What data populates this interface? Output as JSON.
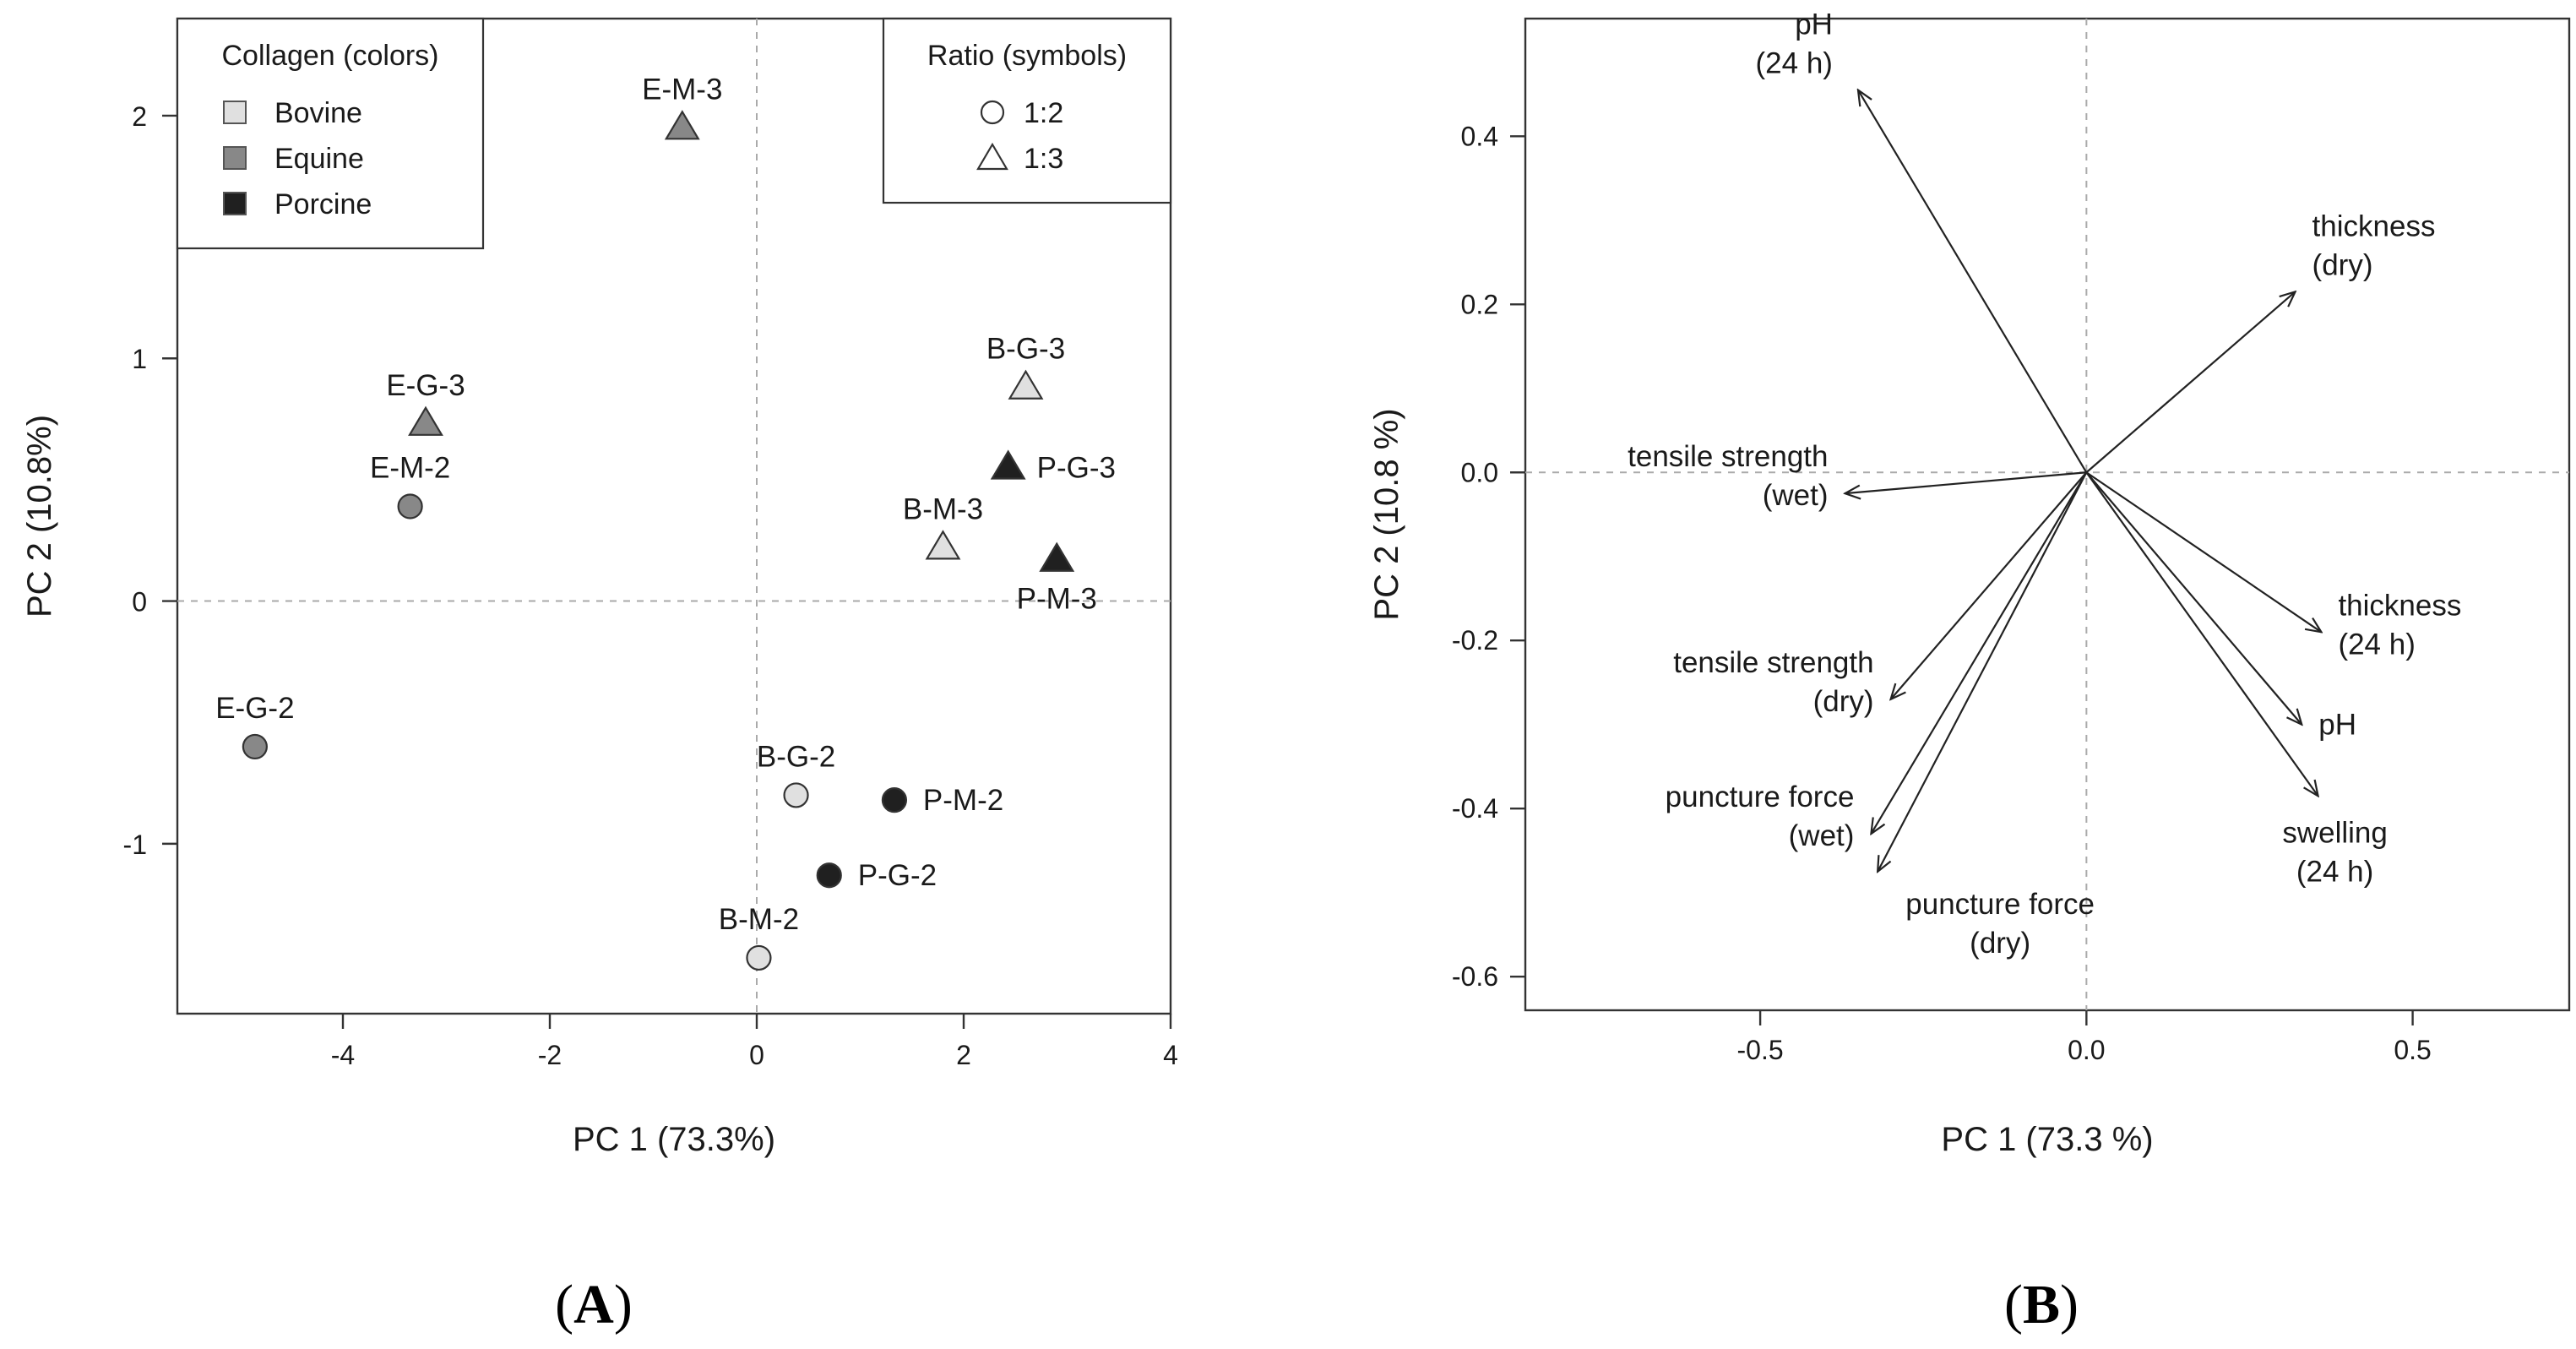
{
  "chart_data": [
    {
      "type": "scatter",
      "panel": "A",
      "xlabel": "PC 1 (73.3%)",
      "ylabel": "PC 2 (10.8%)",
      "xlim": [
        -5.6,
        4.0
      ],
      "ylim": [
        -1.7,
        2.4
      ],
      "xticks": [
        -4,
        -2,
        0,
        2,
        4
      ],
      "yticks": [
        -1,
        0,
        1,
        2
      ],
      "reference_lines": {
        "x": 0,
        "y": 0
      },
      "colors": {
        "Bovine": "#e0e0e0",
        "Equine": "#888888",
        "Porcine": "#202020"
      },
      "legend_collagen": {
        "title": "Collagen (colors)",
        "entries": [
          {
            "label": "Bovine",
            "collagen": "Bovine"
          },
          {
            "label": "Equine",
            "collagen": "Equine"
          },
          {
            "label": "Porcine",
            "collagen": "Porcine"
          }
        ]
      },
      "legend_ratio": {
        "title": "Ratio (symbols)",
        "entries": [
          {
            "label": "1:2",
            "symbol": "circle"
          },
          {
            "label": "1:3",
            "symbol": "triangle"
          }
        ]
      },
      "points": [
        {
          "label": "E-M-3",
          "x": -0.72,
          "y": 1.95,
          "collagen": "Equine",
          "symbol": "triangle",
          "label_pos": "above"
        },
        {
          "label": "E-G-3",
          "x": -3.2,
          "y": 0.73,
          "collagen": "Equine",
          "symbol": "triangle",
          "label_pos": "above"
        },
        {
          "label": "E-M-2",
          "x": -3.35,
          "y": 0.39,
          "collagen": "Equine",
          "symbol": "circle",
          "label_pos": "above"
        },
        {
          "label": "E-G-2",
          "x": -4.85,
          "y": -0.6,
          "collagen": "Equine",
          "symbol": "circle",
          "label_pos": "above"
        },
        {
          "label": "B-G-3",
          "x": 2.6,
          "y": 0.88,
          "collagen": "Bovine",
          "symbol": "triangle",
          "label_pos": "above"
        },
        {
          "label": "P-G-3",
          "x": 2.43,
          "y": 0.55,
          "collagen": "Porcine",
          "symbol": "triangle",
          "label_pos": "right"
        },
        {
          "label": "B-M-3",
          "x": 1.8,
          "y": 0.22,
          "collagen": "Bovine",
          "symbol": "triangle",
          "label_pos": "above"
        },
        {
          "label": "P-M-3",
          "x": 2.9,
          "y": 0.17,
          "collagen": "Porcine",
          "symbol": "triangle",
          "label_pos": "below"
        },
        {
          "label": "B-G-2",
          "x": 0.38,
          "y": -0.8,
          "collagen": "Bovine",
          "symbol": "circle",
          "label_pos": "above"
        },
        {
          "label": "P-M-2",
          "x": 1.33,
          "y": -0.82,
          "collagen": "Porcine",
          "symbol": "circle",
          "label_pos": "right"
        },
        {
          "label": "P-G-2",
          "x": 0.7,
          "y": -1.13,
          "collagen": "Porcine",
          "symbol": "circle",
          "label_pos": "right"
        },
        {
          "label": "B-M-2",
          "x": 0.02,
          "y": -1.47,
          "collagen": "Bovine",
          "symbol": "circle",
          "label_pos": "above"
        }
      ]
    },
    {
      "type": "biplot-loadings",
      "panel": "B",
      "xlabel": "PC 1 (73.3 %)",
      "ylabel": "PC 2 (10.8 %)",
      "xlim": [
        -0.86,
        0.74
      ],
      "ylim": [
        -0.64,
        0.54
      ],
      "xticks": [
        -0.5,
        0.0,
        0.5
      ],
      "yticks": [
        -0.6,
        -0.4,
        -0.2,
        0.0,
        0.2,
        0.4
      ],
      "reference_lines": {
        "x": 0,
        "y": 0
      },
      "vectors": [
        {
          "lines": [
            "pH",
            "(24 h)"
          ],
          "x": -0.35,
          "y": 0.455,
          "label_pos": "upper-left"
        },
        {
          "lines": [
            "thickness",
            "(dry)"
          ],
          "x": 0.32,
          "y": 0.215,
          "label_pos": "upper-right"
        },
        {
          "lines": [
            "tensile strength",
            "(wet)"
          ],
          "x": -0.37,
          "y": -0.025,
          "label_pos": "left"
        },
        {
          "lines": [
            "thickness",
            "(24 h)"
          ],
          "x": 0.36,
          "y": -0.19,
          "label_pos": "right"
        },
        {
          "lines": [
            "tensile strength",
            "(dry)"
          ],
          "x": -0.3,
          "y": -0.27,
          "label_pos": "left"
        },
        {
          "lines": [
            "pH"
          ],
          "x": 0.33,
          "y": -0.3,
          "label_pos": "right"
        },
        {
          "lines": [
            "swelling",
            "(24 h)"
          ],
          "x": 0.355,
          "y": -0.385,
          "label_pos": "below"
        },
        {
          "lines": [
            "puncture force",
            "(wet)"
          ],
          "x": -0.33,
          "y": -0.43,
          "label_pos": "left"
        },
        {
          "lines": [
            "puncture force",
            "(dry)"
          ],
          "x": -0.32,
          "y": -0.475,
          "label_pos": "below-right"
        }
      ]
    }
  ],
  "panel_labels": {
    "a": "(A)",
    "b": "(B)"
  },
  "panel_letters": {
    "a": "A",
    "b": "B"
  }
}
